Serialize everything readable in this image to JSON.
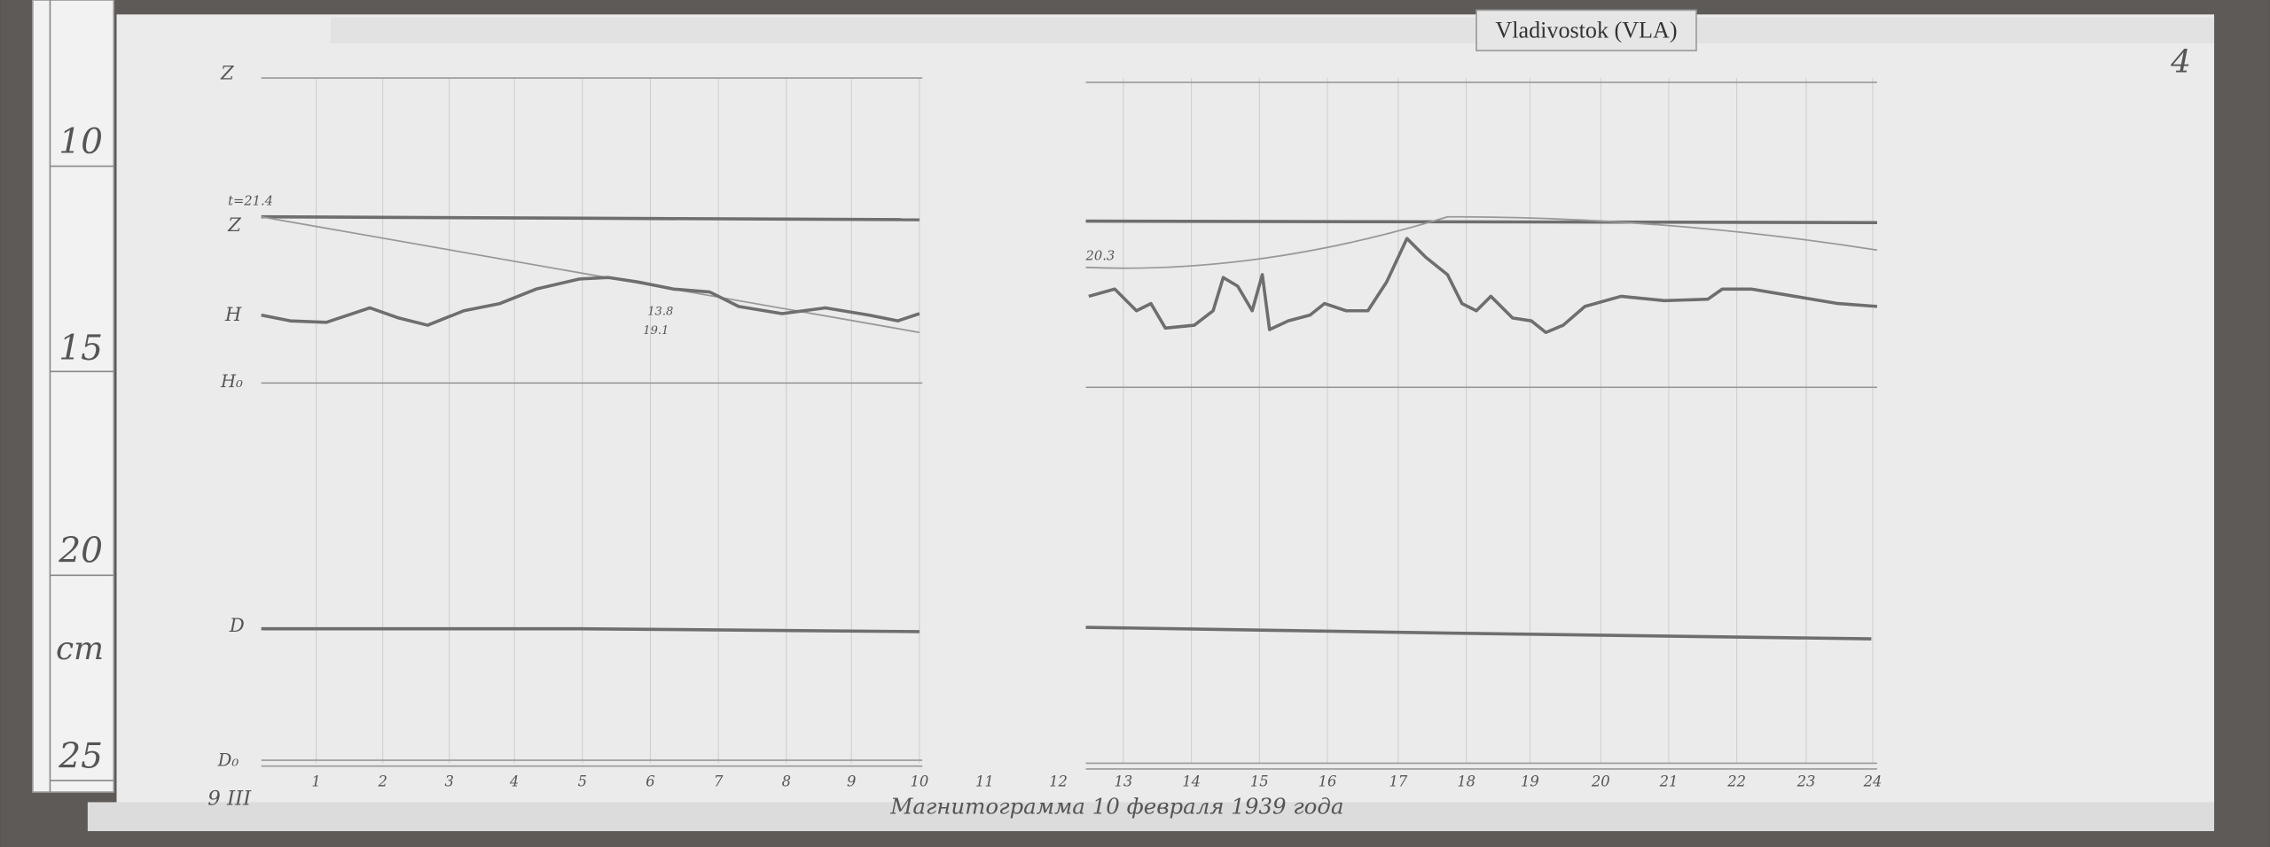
{
  "header": {
    "station": "Vladivostok (VLA)",
    "page": "4"
  },
  "ruler": {
    "marks": [
      "10",
      "15",
      "20",
      "25"
    ],
    "unit": "cm"
  },
  "traces": {
    "z_top": "Z",
    "t_note": "t=21.4",
    "z": "Z",
    "h": "H",
    "h0": "H₀",
    "d": "D",
    "d0": "D₀"
  },
  "hours": [
    "1",
    "2",
    "3",
    "4",
    "5",
    "6",
    "7",
    "8",
    "9",
    "10",
    "11",
    "12",
    "13",
    "14",
    "15",
    "16",
    "17",
    "18",
    "19",
    "20",
    "21",
    "22",
    "23",
    "24"
  ],
  "annotations": [
    "13.8",
    "19.1",
    "20.3"
  ],
  "footer": {
    "plate": "9 III",
    "caption": "Магнитограмма 10 февраля 1939 года"
  }
}
